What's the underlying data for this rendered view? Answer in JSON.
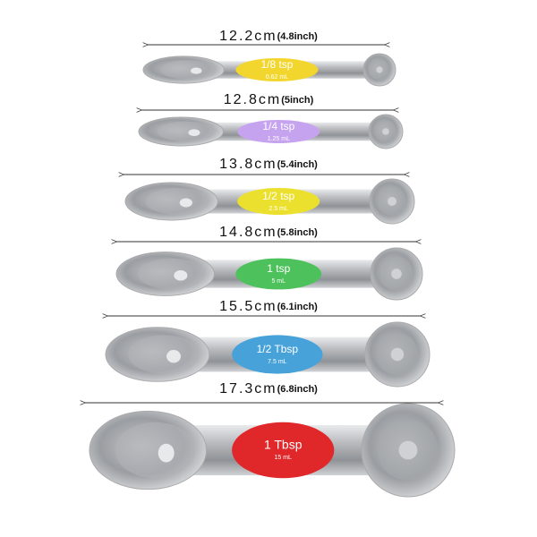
{
  "spoons": [
    {
      "length": "12.2cm",
      "inch": "(4.8inch)",
      "label": "1/8 tsp",
      "ml": "0.62 mL"
    },
    {
      "length": "12.8cm",
      "inch": "(5inch)",
      "label": "1/4 tsp",
      "ml": "1.25 mL"
    },
    {
      "length": "13.8cm",
      "inch": "(5.4inch)",
      "label": "1/2 tsp",
      "ml": "2.5 mL"
    },
    {
      "length": "14.8cm",
      "inch": "(5.8inch)",
      "label": "1 tsp",
      "ml": "5 mL"
    },
    {
      "length": "15.5cm",
      "inch": "(6.1inch)",
      "label": "1/2 Tbsp",
      "ml": "7.5 mL"
    },
    {
      "length": "17.3cm",
      "inch": "(6.8inch)",
      "label": "1 Tbsp",
      "ml": "15 mL"
    }
  ]
}
